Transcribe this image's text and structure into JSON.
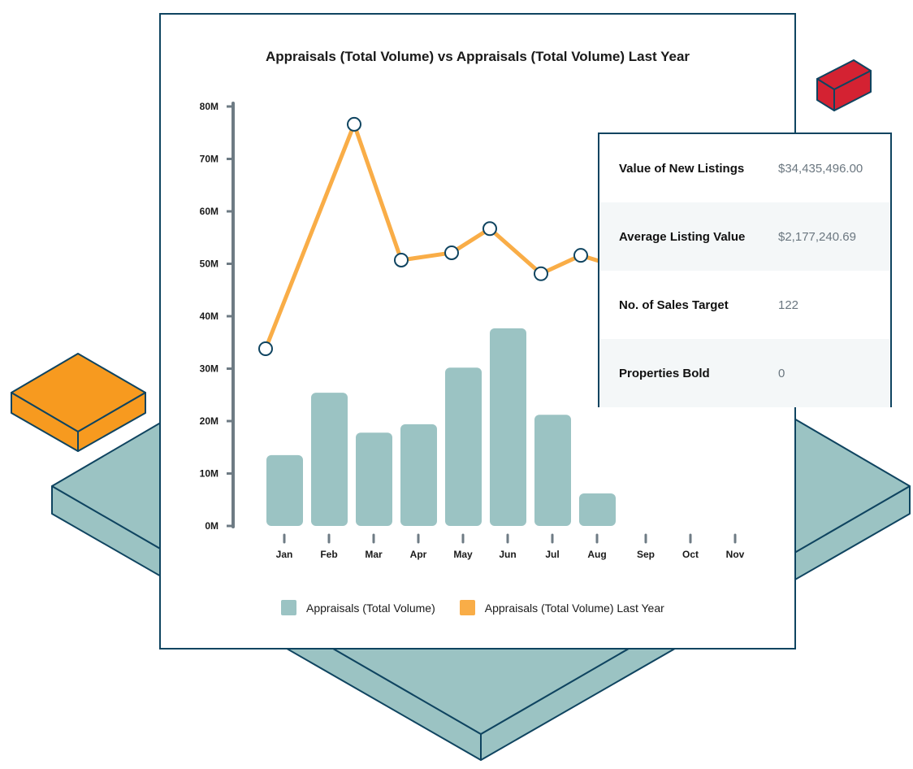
{
  "chart": {
    "title": "Appraisals (Total Volume) vs Appraisals (Total Volume) Last Year",
    "y_ticks": [
      "0M",
      "10M",
      "20M",
      "30M",
      "40M",
      "50M",
      "60M",
      "70M",
      "80M"
    ],
    "months": [
      "Jan",
      "Feb",
      "Mar",
      "Apr",
      "May",
      "Jun",
      "Jul",
      "Aug",
      "Sep",
      "Oct",
      "Nov"
    ],
    "legend": [
      {
        "label": "Appraisals (Total Volume)",
        "color": "#9bc3c3"
      },
      {
        "label": "Appraisals (Total Volume) Last Year",
        "color": "#f9ad47"
      }
    ]
  },
  "stats_panel": {
    "rows": [
      {
        "label": "Value of New Listings",
        "value": "$34,435,496.00"
      },
      {
        "label": "Average Listing Value",
        "value": "$2,177,240.69"
      },
      {
        "label": "No. of Sales Target",
        "value": "122"
      },
      {
        "label": "Properties Bold",
        "value": "0"
      }
    ]
  },
  "colors": {
    "bar": "#9bc3c3",
    "line": "#f9ad47",
    "marker_stroke": "#0f4460",
    "axis": "#6e7b84",
    "outline": "#0f4460",
    "deco_orange": "#f79a1f",
    "deco_red": "#d42232",
    "deco_teal": "#9bc3c3"
  },
  "chart_data": {
    "type": "bar",
    "title": "Appraisals (Total Volume) vs Appraisals (Total Volume) Last Year",
    "xlabel": "",
    "ylabel": "",
    "ylim": [
      0,
      80000000
    ],
    "grid": false,
    "legend_position": "bottom",
    "categories": [
      "Jan",
      "Feb",
      "Mar",
      "Apr",
      "May",
      "Jun",
      "Jul",
      "Aug",
      "Sep",
      "Oct",
      "Nov"
    ],
    "series": [
      {
        "name": "Appraisals (Total Volume)",
        "type": "bar",
        "values": [
          13500000,
          25400000,
          17800000,
          19400000,
          30200000,
          37700000,
          21200000,
          6200000,
          null,
          null,
          null
        ]
      },
      {
        "name": "Appraisals (Total Volume) Last Year",
        "type": "line",
        "values": [
          33800000,
          76600000,
          50700000,
          52100000,
          56700000,
          48100000,
          51600000,
          49000000,
          null,
          null,
          null
        ]
      }
    ]
  }
}
